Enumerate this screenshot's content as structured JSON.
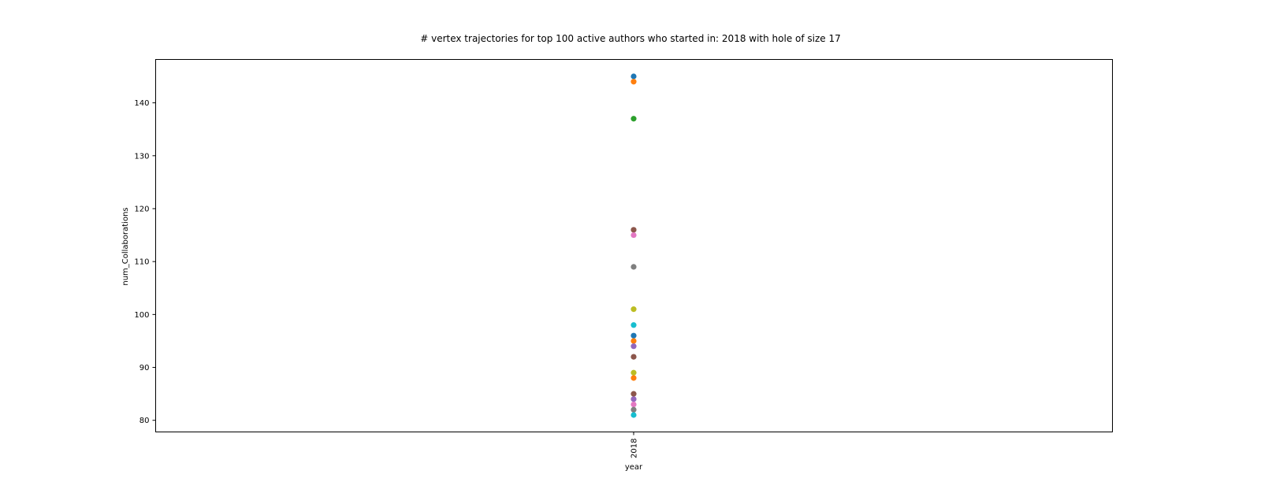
{
  "chart_data": {
    "type": "scatter",
    "title": "# vertex trajectories for top 100 active authors who started in: 2018 with hole of size 17",
    "xlabel": "year",
    "ylabel": "num_Collaborations",
    "x_categories": [
      "2018"
    ],
    "ylim": [
      77.8,
      148.2
    ],
    "yticks": [
      80,
      90,
      100,
      110,
      120,
      130,
      140
    ],
    "grid": false,
    "points": [
      {
        "x": "2018",
        "y": 145,
        "color": "#1f77b4"
      },
      {
        "x": "2018",
        "y": 144,
        "color": "#ff7f0e"
      },
      {
        "x": "2018",
        "y": 137,
        "color": "#2ca02c"
      },
      {
        "x": "2018",
        "y": 116,
        "color": "#8c564b"
      },
      {
        "x": "2018",
        "y": 115,
        "color": "#e377c2"
      },
      {
        "x": "2018",
        "y": 109,
        "color": "#7f7f7f"
      },
      {
        "x": "2018",
        "y": 101,
        "color": "#bcbd22"
      },
      {
        "x": "2018",
        "y": 98,
        "color": "#17becf"
      },
      {
        "x": "2018",
        "y": 96,
        "color": "#1f77b4"
      },
      {
        "x": "2018",
        "y": 95,
        "color": "#ff7f0e"
      },
      {
        "x": "2018",
        "y": 94,
        "color": "#9467bd"
      },
      {
        "x": "2018",
        "y": 92,
        "color": "#8c564b"
      },
      {
        "x": "2018",
        "y": 89,
        "color": "#bcbd22"
      },
      {
        "x": "2018",
        "y": 88,
        "color": "#ff7f0e"
      },
      {
        "x": "2018",
        "y": 85,
        "color": "#8c564b"
      },
      {
        "x": "2018",
        "y": 84,
        "color": "#9467bd"
      },
      {
        "x": "2018",
        "y": 83,
        "color": "#e377c2"
      },
      {
        "x": "2018",
        "y": 82,
        "color": "#7f7f7f"
      },
      {
        "x": "2018",
        "y": 81,
        "color": "#17becf"
      }
    ]
  }
}
